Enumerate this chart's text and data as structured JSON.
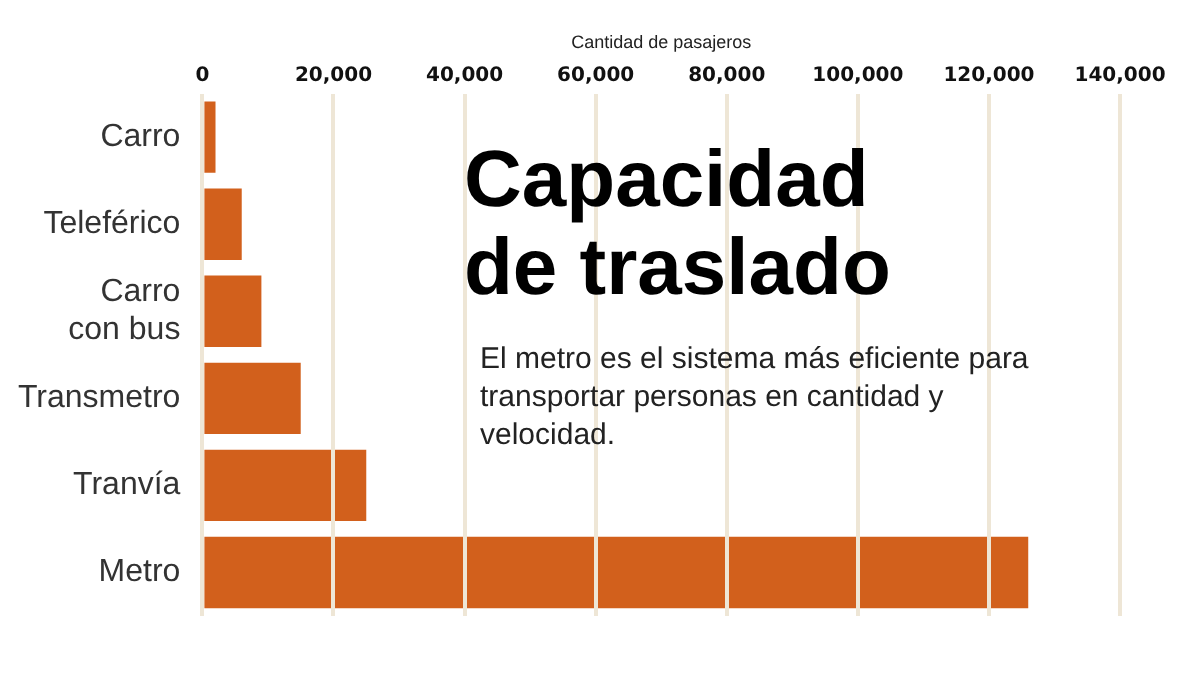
{
  "chart_data": {
    "type": "bar",
    "orientation": "horizontal",
    "title": "Capacidad de traslado",
    "subtitle": "El metro es el sistema más eficiente para transportar personas en cantidad y velocidad.",
    "xlabel": "Cantidad de pasajeros",
    "categories": [
      "Carro",
      "Teleférico",
      "Carro\ncon bus",
      "Transmetro",
      "Tranvía",
      "Metro"
    ],
    "values": [
      2000,
      6000,
      9000,
      15000,
      25000,
      126000
    ],
    "color": "#d2601c",
    "xlim": [
      0,
      140000
    ],
    "xticks": [
      0,
      {
        "value": 20000,
        "label": "20,000"
      },
      {
        "value": 40000,
        "label": "40,000"
      },
      {
        "value": 60000,
        "label": "60,000"
      },
      {
        "value": 80000,
        "label": "80,000"
      },
      {
        "value": 100000,
        "label": "100,000"
      },
      {
        "value": 120000,
        "label": "120,000"
      },
      {
        "value": 140000,
        "label": "140,000"
      }
    ],
    "grid": "x"
  }
}
